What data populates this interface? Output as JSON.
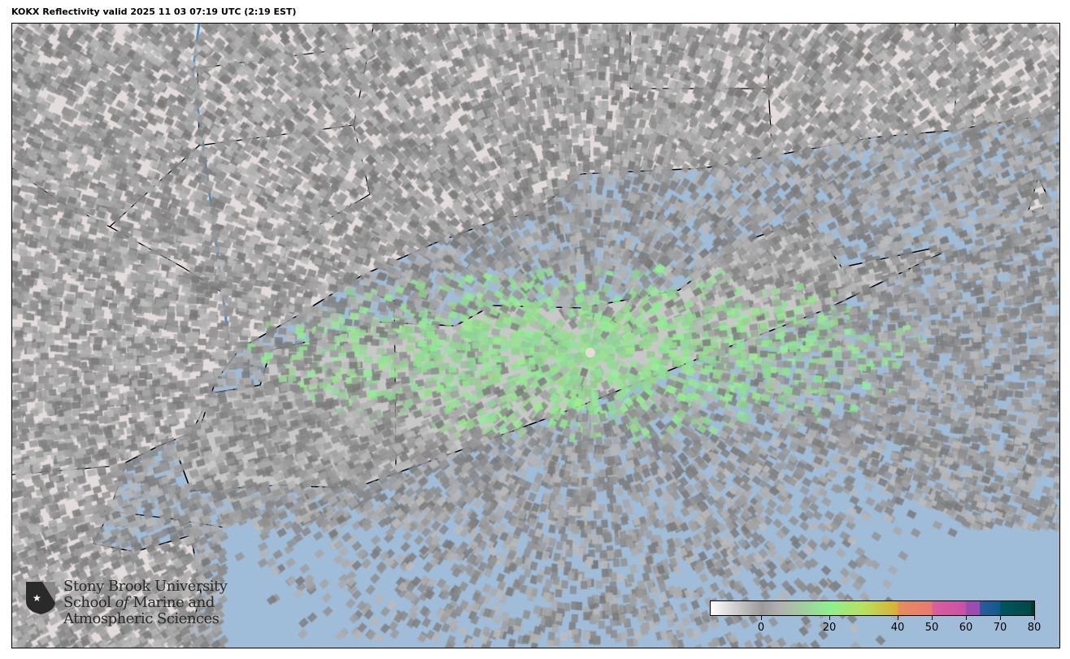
{
  "title": "KOKX Reflectivity valid 2025 11 03 07:19 UTC (2:19 EST)",
  "colors": {
    "ocean": "#9fbcd8",
    "land": "#e4dcdc",
    "border": "#000000",
    "radar_gray": "#8c8c8c",
    "radar_green": "#8ef08e"
  },
  "logo": {
    "line1": "Stony Brook University",
    "line2a": "School ",
    "line2b": "of",
    "line2c": " Marine and",
    "line3": "Atmospheric Sciences"
  },
  "colorbar": {
    "min": -15,
    "max": 80,
    "ticks": [
      0,
      20,
      40,
      50,
      60,
      70,
      80
    ],
    "tick_labels": [
      "0",
      "20",
      "40",
      "50",
      "60",
      "70",
      "80"
    ],
    "stops": [
      {
        "v": -15,
        "c": "#ffffff"
      },
      {
        "v": 0,
        "c": "#9a9a9a"
      },
      {
        "v": 5,
        "c": "#b0b0b0"
      },
      {
        "v": 20,
        "c": "#8ef08e"
      },
      {
        "v": 30,
        "c": "#b8e060"
      },
      {
        "v": 40,
        "c": "#dcae30"
      },
      {
        "v": 40.01,
        "c": "#e88c5e"
      },
      {
        "v": 50,
        "c": "#e87a70"
      },
      {
        "v": 50.01,
        "c": "#de5e9a"
      },
      {
        "v": 60,
        "c": "#c850a8"
      },
      {
        "v": 60.01,
        "c": "#9a4cb0"
      },
      {
        "v": 64,
        "c": "#9a4cb0"
      },
      {
        "v": 64.01,
        "c": "#2e5aa0"
      },
      {
        "v": 70,
        "c": "#105a8a"
      },
      {
        "v": 70.01,
        "c": "#005560"
      },
      {
        "v": 79,
        "c": "#004848"
      },
      {
        "v": 79.01,
        "c": "#003a28"
      },
      {
        "v": 80,
        "c": "#003a28"
      }
    ]
  }
}
